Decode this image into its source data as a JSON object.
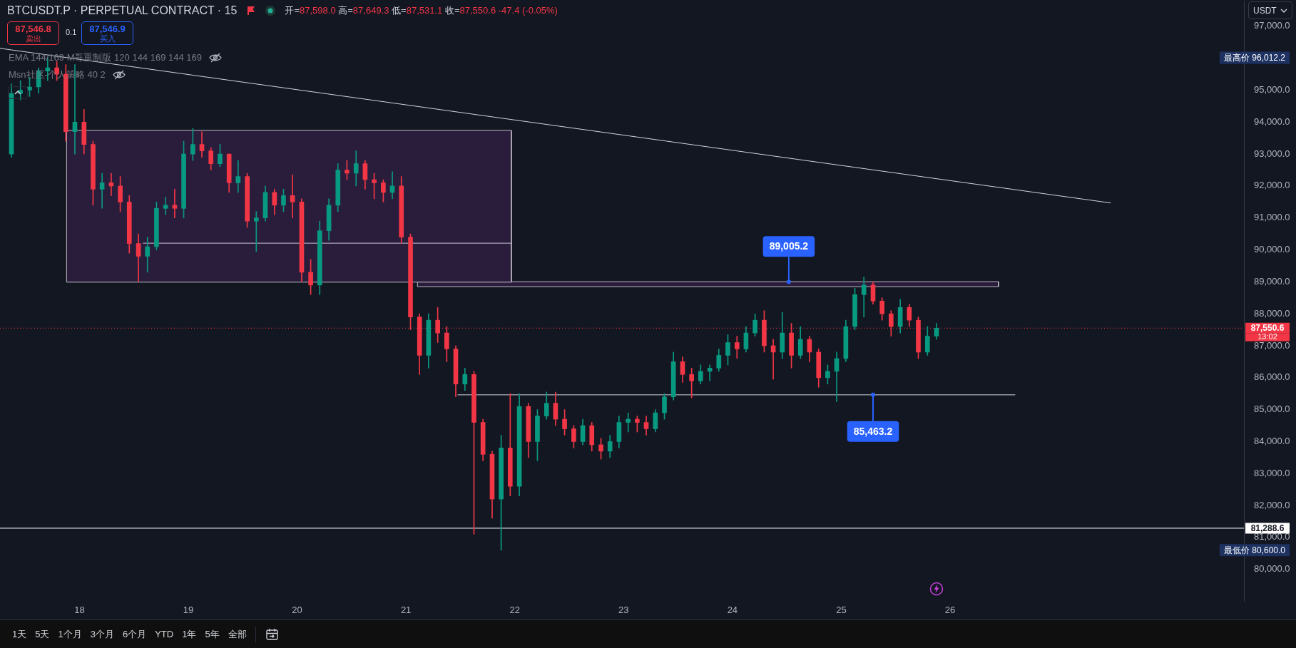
{
  "chart_data": {
    "type": "candlestick",
    "title": "BTCUSDT.P · PERPETUAL CONTRACT · 15",
    "subtitle": "开=87,598.0 高=87,649.3 低=87,531.1 收=87,550.6 -47.4 (-0.05%)",
    "ylabel": "USDT",
    "x": [
      17.375,
      17.458,
      17.542,
      17.625,
      17.708,
      17.792,
      17.875,
      17.958,
      18.042,
      18.125,
      18.208,
      18.292,
      18.375,
      18.458,
      18.542,
      18.625,
      18.708,
      18.792,
      18.875,
      18.958,
      19.042,
      19.125,
      19.208,
      19.292,
      19.375,
      19.458,
      19.542,
      19.625,
      19.708,
      19.792,
      19.875,
      19.958,
      20.042,
      20.125,
      20.208,
      20.292,
      20.375,
      20.458,
      20.542,
      20.625,
      20.708,
      20.792,
      20.875,
      20.958,
      21.042,
      21.125,
      21.208,
      21.292,
      21.375,
      21.458,
      21.542,
      21.625,
      21.708,
      21.792,
      21.875,
      21.958,
      22.042,
      22.125,
      22.208,
      22.292,
      22.375,
      22.458,
      22.542,
      22.625,
      22.708,
      22.792,
      22.875,
      22.958,
      23.042,
      23.125,
      23.208,
      23.292,
      23.375,
      23.458,
      23.542,
      23.625,
      23.708,
      23.792,
      23.875,
      23.958,
      24.042,
      24.125,
      24.208,
      24.292,
      24.375,
      24.458,
      24.542,
      24.625,
      24.708,
      24.792,
      24.875,
      24.958,
      25.042,
      25.125,
      25.208,
      25.292,
      25.375,
      25.458,
      25.542,
      25.625,
      25.708,
      25.792,
      25.875
    ],
    "ohlc": [
      [
        93000,
        95200,
        92900,
        94900
      ],
      [
        94900,
        95300,
        94700,
        95000
      ],
      [
        95000,
        95400,
        94800,
        95100
      ],
      [
        95100,
        95700,
        94900,
        95600
      ],
      [
        95600,
        96012.2,
        95300,
        95700
      ],
      [
        95700,
        95900,
        95300,
        95500
      ],
      [
        95500,
        95800,
        93400,
        93700
      ],
      [
        93700,
        95800,
        93000,
        94000
      ],
      [
        94000,
        94400,
        93000,
        93300
      ],
      [
        93300,
        93400,
        91400,
        91900
      ],
      [
        91900,
        92400,
        91300,
        92100
      ],
      [
        92100,
        92400,
        91700,
        92000
      ],
      [
        92000,
        92300,
        91200,
        91500
      ],
      [
        91500,
        91700,
        89900,
        90200
      ],
      [
        90200,
        90500,
        89000,
        89800
      ],
      [
        89800,
        90400,
        89300,
        90100
      ],
      [
        90100,
        91500,
        90000,
        91300
      ],
      [
        91300,
        91650,
        91100,
        91400
      ],
      [
        91400,
        91900,
        91000,
        91300
      ],
      [
        91300,
        93400,
        91000,
        93000
      ],
      [
        93000,
        93800,
        92800,
        93300
      ],
      [
        93300,
        93700,
        92900,
        93100
      ],
      [
        93100,
        93200,
        92500,
        92700
      ],
      [
        92700,
        93300,
        92600,
        93000
      ],
      [
        93000,
        93000,
        91800,
        92100
      ],
      [
        92100,
        92800,
        91800,
        92300
      ],
      [
        92300,
        92400,
        90700,
        90900
      ],
      [
        90900,
        91200,
        89950,
        91000
      ],
      [
        91000,
        92000,
        90900,
        91800
      ],
      [
        91800,
        91900,
        91100,
        91400
      ],
      [
        91400,
        91900,
        91200,
        91700
      ],
      [
        91700,
        92350,
        91000,
        91500
      ],
      [
        91500,
        91600,
        89000,
        89300
      ],
      [
        89300,
        89700,
        88600,
        88900
      ],
      [
        88900,
        90900,
        88600,
        90600
      ],
      [
        90600,
        91600,
        90300,
        91400
      ],
      [
        91400,
        92700,
        91200,
        92500
      ],
      [
        92500,
        92800,
        92200,
        92400
      ],
      [
        92400,
        93100,
        92000,
        92700
      ],
      [
        92700,
        92800,
        91900,
        92200
      ],
      [
        92200,
        92400,
        91600,
        92100
      ],
      [
        92100,
        92200,
        91500,
        91800
      ],
      [
        91800,
        92450,
        91600,
        92000
      ],
      [
        92000,
        92300,
        90200,
        90400
      ],
      [
        90400,
        90500,
        87500,
        87900
      ],
      [
        87900,
        88000,
        86100,
        86700
      ],
      [
        86700,
        88000,
        86300,
        87800
      ],
      [
        87800,
        88200,
        87100,
        87400
      ],
      [
        87400,
        87600,
        86500,
        86900
      ],
      [
        86900,
        87000,
        85400,
        85800
      ],
      [
        85800,
        86300,
        85600,
        86100
      ],
      [
        86100,
        86200,
        81100,
        84600
      ],
      [
        84600,
        84700,
        83400,
        83600
      ],
      [
        83600,
        83700,
        81600,
        82200
      ],
      [
        82200,
        84200,
        80600,
        83800
      ],
      [
        83800,
        85500,
        82300,
        82600
      ],
      [
        82600,
        85500,
        82300,
        85100
      ],
      [
        85100,
        85200,
        83500,
        84000
      ],
      [
        84000,
        85000,
        83400,
        84800
      ],
      [
        84800,
        85550,
        84700,
        85200
      ],
      [
        85200,
        85550,
        84500,
        84700
      ],
      [
        84700,
        85000,
        84200,
        84400
      ],
      [
        84400,
        84500,
        83800,
        84000
      ],
      [
        84000,
        84700,
        83900,
        84500
      ],
      [
        84500,
        84600,
        83700,
        83900
      ],
      [
        83900,
        84100,
        83450,
        83700
      ],
      [
        83700,
        84200,
        83500,
        84000
      ],
      [
        84000,
        84800,
        83800,
        84600
      ],
      [
        84600,
        84900,
        84300,
        84700
      ],
      [
        84700,
        84800,
        84300,
        84600
      ],
      [
        84600,
        84800,
        84200,
        84400
      ],
      [
        84400,
        85000,
        84300,
        84900
      ],
      [
        84900,
        85500,
        84700,
        85400
      ],
      [
        85400,
        86800,
        85300,
        86500
      ],
      [
        86500,
        86650,
        85850,
        86100
      ],
      [
        86100,
        86300,
        85370,
        85900
      ],
      [
        85900,
        86400,
        85800,
        86200
      ],
      [
        86200,
        86400,
        85900,
        86300
      ],
      [
        86300,
        86900,
        86200,
        86700
      ],
      [
        86700,
        87350,
        86400,
        87100
      ],
      [
        87100,
        87300,
        86600,
        86900
      ],
      [
        86900,
        87600,
        86800,
        87400
      ],
      [
        87400,
        88000,
        87300,
        87800
      ],
      [
        87800,
        88100,
        86800,
        87000
      ],
      [
        87000,
        87200,
        85950,
        86800
      ],
      [
        86800,
        88050,
        86600,
        87400
      ],
      [
        87400,
        87700,
        86300,
        86700
      ],
      [
        86700,
        87600,
        86600,
        87200
      ],
      [
        87200,
        87300,
        86500,
        86800
      ],
      [
        86800,
        86900,
        85700,
        86000
      ],
      [
        86000,
        86400,
        85800,
        86200
      ],
      [
        86200,
        86800,
        85250,
        86600
      ],
      [
        86600,
        87800,
        86500,
        87600
      ],
      [
        87600,
        88800,
        87500,
        88600
      ],
      [
        88600,
        89150,
        87900,
        88900
      ],
      [
        88900,
        89000,
        88300,
        88400
      ],
      [
        88400,
        88500,
        87800,
        88000
      ],
      [
        88000,
        88100,
        87300,
        87600
      ],
      [
        87600,
        88450,
        87400,
        88200
      ],
      [
        88200,
        88300,
        87600,
        87800
      ],
      [
        87800,
        87900,
        86600,
        86800
      ],
      [
        86800,
        87600,
        86700,
        87300
      ],
      [
        87300,
        87700,
        87200,
        87550.6
      ]
    ],
    "colors": [
      "#089981",
      "#089981",
      "#089981",
      "#089981",
      "#089981",
      "#f23645",
      "#f23645",
      "#089981",
      "#f23645",
      "#f23645",
      "#089981",
      "#f23645",
      "#f23645",
      "#f23645",
      "#f23645",
      "#089981",
      "#089981",
      "#089981",
      "#f23645",
      "#089981",
      "#089981",
      "#f23645",
      "#f23645",
      "#089981",
      "#f23645",
      "#089981",
      "#f23645",
      "#089981",
      "#089981",
      "#f23645",
      "#089981",
      "#f23645",
      "#f23645",
      "#f23645",
      "#089981",
      "#089981",
      "#089981",
      "#f23645",
      "#089981",
      "#f23645",
      "#f23645",
      "#f23645",
      "#089981",
      "#f23645",
      "#f23645",
      "#f23645",
      "#089981",
      "#f23645",
      "#f23645",
      "#f23645",
      "#089981",
      "#f23645",
      "#f23645",
      "#f23645",
      "#089981",
      "#f23645",
      "#089981",
      "#f23645",
      "#089981",
      "#089981",
      "#f23645",
      "#f23645",
      "#f23645",
      "#089981",
      "#f23645",
      "#f23645",
      "#089981",
      "#089981",
      "#089981",
      "#f23645",
      "#f23645",
      "#089981",
      "#089981",
      "#089981",
      "#f23645",
      "#f23645",
      "#089981",
      "#089981",
      "#089981",
      "#089981",
      "#f23645",
      "#089981",
      "#089981",
      "#f23645",
      "#f23645",
      "#089981",
      "#f23645",
      "#089981",
      "#f23645",
      "#f23645",
      "#089981",
      "#089981",
      "#089981",
      "#089981",
      "#089981",
      "#f23645",
      "#f23645",
      "#f23645",
      "#089981",
      "#f23645",
      "#f23645",
      "#089981",
      "#089981"
    ],
    "series": [
      {
        "type": "area",
        "color": "#2a1d3c",
        "x": [
          17.882,
          21.969,
          21.969,
          17.882,
          17.882
        ],
        "values": [
          93740,
          93740,
          88990,
          88990,
          93740
        ]
      },
      {
        "type": "line",
        "color": "#c9c7d6",
        "x": [
          18.585,
          21.969
        ],
        "values": [
          90210,
          90210
        ]
      },
      {
        "type": "area",
        "color": "#2a1d3c",
        "x": [
          21.106,
          26.445,
          26.445,
          21.106,
          21.106
        ],
        "values": [
          89005.2,
          89005.2,
          88850,
          88850,
          89005.2
        ]
      },
      {
        "type": "line",
        "color": "#d1d4dc",
        "x": [
          21.476,
          26.596
        ],
        "values": [
          85463.2,
          85463.2
        ]
      },
      {
        "type": "line",
        "color": "#d1d4dc",
        "x": [
          17.27,
          27.474
        ],
        "values": [
          96310,
          91470
        ]
      }
    ],
    "xlim": [
      17.27,
      28.7
    ],
    "xticks": [
      18,
      19,
      20,
      21,
      22,
      23,
      24,
      25,
      26
    ],
    "ylim": [
      79000,
      97800
    ],
    "yticks": [
      {
        "value": 80000,
        "label": "80,000.0"
      },
      {
        "value": 81000,
        "label": "81,000.0"
      },
      {
        "value": 82000,
        "label": "82,000.0"
      },
      {
        "value": 83000,
        "label": "83,000.0"
      },
      {
        "value": 84000,
        "label": "84,000.0"
      },
      {
        "value": 85000,
        "label": "85,000.0"
      },
      {
        "value": 86000,
        "label": "86,000.0"
      },
      {
        "value": 87000,
        "label": "87,000.0"
      },
      {
        "value": 88000,
        "label": "88,000.0"
      },
      {
        "value": 89000,
        "label": "89,000.0"
      },
      {
        "value": 90000,
        "label": "90,000.0"
      },
      {
        "value": 91000,
        "label": "91,000.0"
      },
      {
        "value": 92000,
        "label": "92,000.0"
      },
      {
        "value": 93000,
        "label": "93,000.0"
      },
      {
        "value": 94000,
        "label": "94,000.0"
      },
      {
        "value": 95000,
        "label": "95,000.0"
      },
      {
        "value": 97000,
        "label": "97,000.0"
      }
    ],
    "ref_lines": [
      {
        "axis": "y",
        "value": 81288.6,
        "label": "81,288.6",
        "color": "#ffffff"
      },
      {
        "axis": "y",
        "value": 87550.6,
        "label": "87,550.6",
        "color": "#f23645",
        "line_style": "dotted"
      }
    ],
    "annotations": [
      {
        "text": "89,005.2",
        "x": 24.518,
        "y": 89005.2
      },
      {
        "text": "85,463.2",
        "x": 25.292,
        "y": 85463.2
      },
      "最高价 96,012.2",
      "最低价 80,600.0",
      "13:02",
      "87,546.8 卖出",
      "0.1",
      "87,546.9 买入",
      "EMA 144/169 M哥重制版 120 144 169 144 169",
      "Msn社区-个人策略 40 2",
      "1天 5天 1个月 3个月 6个月 YTD 1年 5年 全部"
    ]
  }
}
